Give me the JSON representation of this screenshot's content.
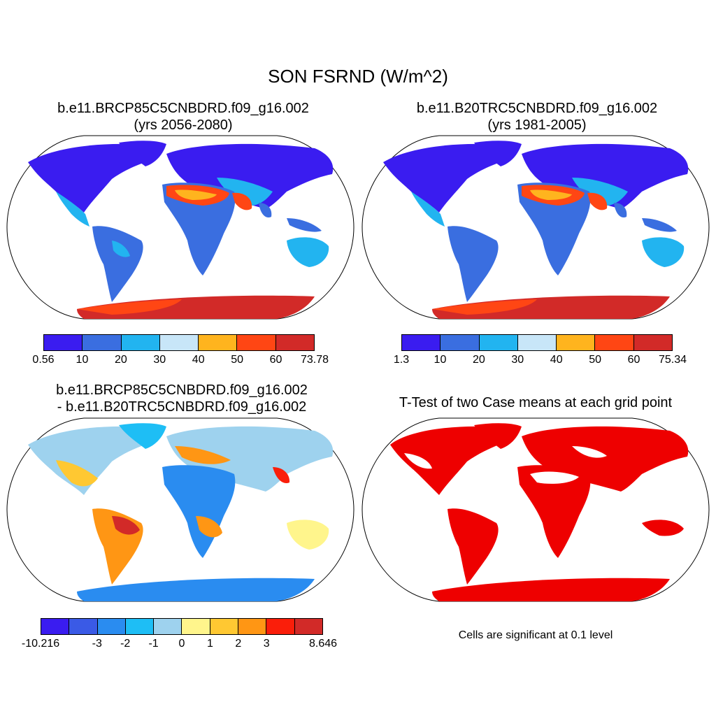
{
  "title": "SON FSRND (W/m^2)",
  "panels": {
    "top_left": {
      "title_line1": "b.e11.BRCP85C5CNBDRD.f09_g16.002",
      "title_line2": "(yrs 2056-2080)",
      "colorbar": {
        "colors": [
          "#3a1cf0",
          "#3a6ee0",
          "#22b4f0",
          "#c8e6f8",
          "#ffb41e",
          "#ff4614",
          "#d22a28"
        ],
        "labels": [
          "0.56",
          "10",
          "20",
          "30",
          "40",
          "50",
          "60",
          "73.78"
        ]
      }
    },
    "top_right": {
      "title_line1": "b.e11.B20TRC5CNBDRD.f09_g16.002",
      "title_line2": "(yrs 1981-2005)",
      "colorbar": {
        "colors": [
          "#3a1cf0",
          "#3a6ee0",
          "#22b4f0",
          "#c8e6f8",
          "#ffb41e",
          "#ff4614",
          "#d22a28"
        ],
        "labels": [
          "1.3",
          "10",
          "20",
          "30",
          "40",
          "50",
          "60",
          "75.34"
        ]
      }
    },
    "bottom_left": {
      "title_line1": "b.e11.BRCP85C5CNBDRD.f09_g16.002",
      "title_line2": "- b.e11.B20TRC5CNBDRD.f09_g16.002",
      "colorbar": {
        "colors": [
          "#3a1cf0",
          "#3a5ae6",
          "#2a8cf0",
          "#1ebef5",
          "#9ed2ee",
          "#fff58c",
          "#ffc832",
          "#ff9614",
          "#fa1e0a",
          "#d22a28"
        ],
        "labels": [
          "-10.216",
          "",
          "-3",
          "-2",
          "-1",
          "0",
          "1",
          "2",
          "3",
          "",
          "8.646"
        ]
      }
    },
    "bottom_right": {
      "title": "T-Test of two Case means at each grid point",
      "note": "Cells are significant at 0.1 level",
      "significant_color": "#ee0000"
    }
  }
}
